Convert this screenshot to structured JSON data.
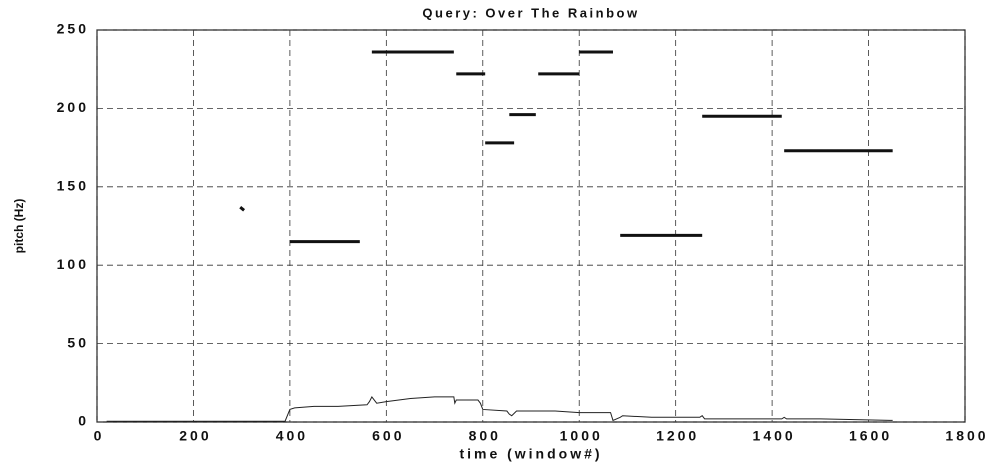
{
  "chart_data": {
    "type": "line",
    "title": "Query: Over The Rainbow",
    "xlabel": "time (window#)",
    "ylabel": "pitch (Hz)",
    "series": [
      {
        "color": "#111111",
        "width": 3,
        "x": [
          400,
          545,
          null,
          570,
          740,
          null,
          745,
          805,
          null,
          805,
          865,
          null,
          855,
          910,
          null,
          915,
          1000,
          null,
          1000,
          1070,
          null,
          1085,
          1255,
          null,
          1255,
          1420,
          null,
          1425,
          1650,
          null,
          297,
          305
        ],
        "values": [
          115,
          115,
          null,
          236,
          236,
          null,
          222,
          222,
          null,
          178,
          178,
          null,
          196,
          196,
          null,
          222,
          222,
          null,
          236,
          236,
          null,
          119,
          119,
          null,
          195,
          195,
          null,
          173,
          173,
          null,
          137,
          135
        ]
      },
      {
        "color": "#222222",
        "width": 1,
        "x": [
          20,
          390,
          400,
          410,
          450,
          500,
          560,
          565,
          570,
          580,
          600,
          650,
          700,
          740,
          742,
          745,
          790,
          795,
          800,
          850,
          855,
          860,
          870,
          950,
          1000,
          1060,
          1065,
          1070,
          1085,
          1090,
          1150,
          1200,
          1250,
          1255,
          1260,
          1420,
          1425,
          1430,
          1500,
          1650
        ],
        "values": [
          0.5,
          0.5,
          8,
          9,
          10,
          10,
          11,
          13,
          16,
          12,
          13,
          15,
          16,
          16,
          12,
          14,
          14,
          12,
          8,
          7,
          5,
          4,
          7,
          7,
          6,
          6,
          6,
          1,
          3,
          4,
          3,
          3,
          3,
          4,
          2,
          2,
          3,
          2,
          2,
          1
        ]
      }
    ],
    "xlim": [
      0,
      1800
    ],
    "ylim": [
      0,
      250
    ],
    "xticks": [
      0,
      200,
      400,
      600,
      800,
      1000,
      1200,
      1400,
      1600,
      1800
    ],
    "yticks": [
      0,
      50,
      100,
      150,
      200,
      250
    ],
    "grid": true
  }
}
